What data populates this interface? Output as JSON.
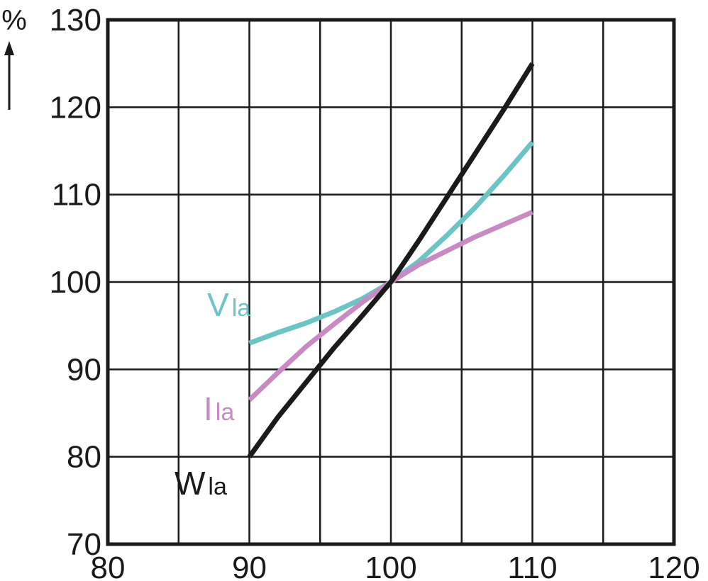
{
  "chart_data": {
    "type": "line",
    "ylabel": "%",
    "xlim": [
      80,
      120
    ],
    "ylim": [
      70,
      130
    ],
    "x_ticks": [
      80,
      90,
      100,
      110,
      120
    ],
    "y_ticks": [
      70,
      80,
      90,
      100,
      110,
      120,
      130
    ],
    "x_grid_step": 5,
    "y_grid_step": 10,
    "grid": true,
    "series": [
      {
        "label_main": "V",
        "label_sub": "la",
        "color": "#6cc4c4",
        "x": [
          90,
          92,
          94,
          96,
          98,
          100,
          102,
          104,
          106,
          108,
          110
        ],
        "y": [
          93.0,
          94.2,
          95.3,
          96.6,
          98.1,
          100.0,
          102.4,
          105.4,
          108.6,
          112.2,
          116.0
        ]
      },
      {
        "label_main": "I",
        "label_sub": "la",
        "color": "#c88ac2",
        "x": [
          90,
          92,
          94,
          96,
          98,
          100,
          102,
          104,
          106,
          108,
          110
        ],
        "y": [
          86.5,
          89.6,
          92.6,
          95.2,
          97.7,
          100.0,
          102.0,
          103.6,
          105.2,
          106.6,
          108.0
        ]
      },
      {
        "label_main": "W",
        "label_sub": "la",
        "color": "#1a1a1a",
        "x": [
          90,
          92,
          94,
          96,
          98,
          100,
          102,
          104,
          106,
          108,
          110
        ],
        "y": [
          80.0,
          84.5,
          88.5,
          92.5,
          96.2,
          100.0,
          104.8,
          109.8,
          114.8,
          119.8,
          125.0
        ]
      }
    ]
  }
}
